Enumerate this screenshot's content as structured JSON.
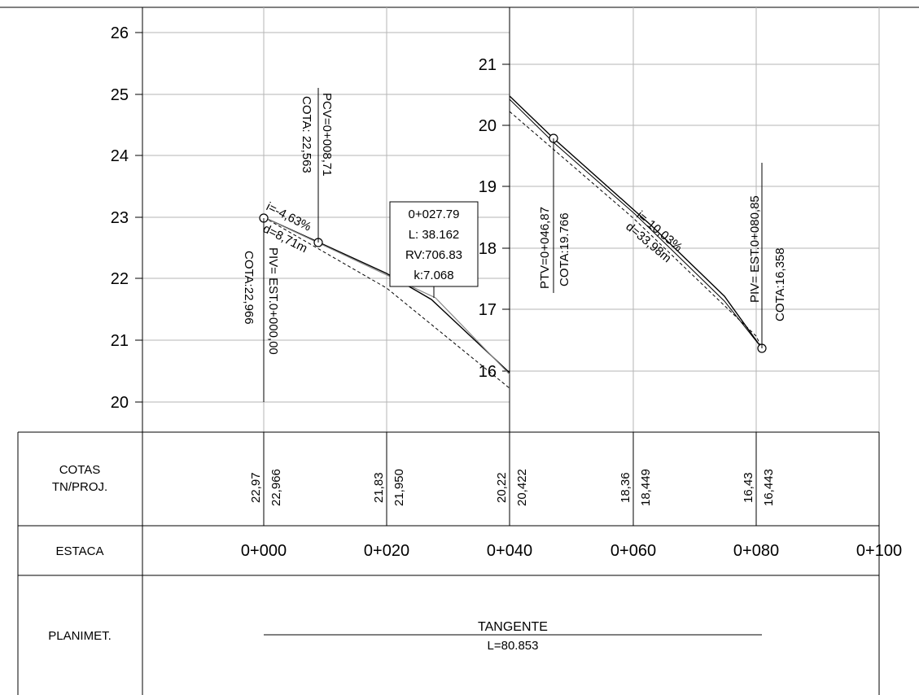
{
  "left_axis_ticks": [
    "26",
    "25",
    "24",
    "23",
    "22",
    "21",
    "20"
  ],
  "right_axis_ticks": [
    "21",
    "20",
    "19",
    "18",
    "17",
    "16"
  ],
  "table": {
    "row_cotas": "COTAS\nTN/PROJ.",
    "row_cotas_line1": "COTAS",
    "row_cotas_line2": "TN/PROJ.",
    "row_estaca": "ESTACA",
    "row_planimet": "PLANIMET.",
    "cotas": [
      {
        "tn": "22,97",
        "proj": "22,966"
      },
      {
        "tn": "21,83",
        "proj": "21,950"
      },
      {
        "tn": "20,22",
        "proj": "20,422"
      },
      {
        "tn": "18,36",
        "proj": "18,449"
      },
      {
        "tn": "16,43",
        "proj": "16,443"
      }
    ],
    "estacas": [
      "0+000",
      "0+020",
      "0+040",
      "0+060",
      "0+080",
      "0+100"
    ],
    "planimetria_title": "TANGENTE",
    "planimetria_length": "L=80.853"
  },
  "annotations": {
    "pcv": "PCV=0+008,71",
    "pcv_cota": "COTA: 22,563",
    "slope1": "i=-4,63%",
    "dist1": "d=8,71m",
    "piv1": "PIV= EST.0+000,00",
    "piv1_cota": "COTA:22,966",
    "curve_station": "0+027.79",
    "curve_L": "L: 38.162",
    "curve_RV": "RV:706.83",
    "curve_k": "k:7.068",
    "ptv": "PTV=0+046,87",
    "ptv_cota": "COTA:19.766",
    "slope2": "i=-10,03%",
    "dist2": "d=33,98m",
    "piv2": "PIV= EST.0+080,85",
    "piv2_cota": "COTA:16,358"
  },
  "colors": {
    "grid": "#b5b5b5",
    "line": "#000000"
  },
  "chart_data": {
    "type": "line",
    "xlabel": "",
    "ylabel": "",
    "x_categories": [
      "0+000",
      "0+020",
      "0+040",
      "0+060",
      "0+080",
      "0+100"
    ],
    "panels": [
      {
        "stations": [
          0,
          40
        ],
        "ylim": [
          20,
          26
        ],
        "series": [
          {
            "points": [
              [
                0,
                22.97
              ],
              [
                20,
                21.83
              ],
              [
                40,
                20.22
              ]
            ]
          },
          {
            "points": [
              [
                0,
                22.966
              ],
              [
                20,
                21.95
              ],
              [
                40,
                20.422
              ]
            ]
          }
        ]
      },
      {
        "stations": [
          40,
          80.85
        ],
        "ylim": [
          16,
          21
        ],
        "series": [
          {
            "points": [
              [
                40,
                20.22
              ],
              [
                60,
                18.36
              ],
              [
                80,
                16.43
              ]
            ]
          },
          {
            "points": [
              [
                40,
                20.422
              ],
              [
                60,
                18.449
              ],
              [
                80.85,
                16.358
              ]
            ]
          }
        ]
      }
    ]
  }
}
